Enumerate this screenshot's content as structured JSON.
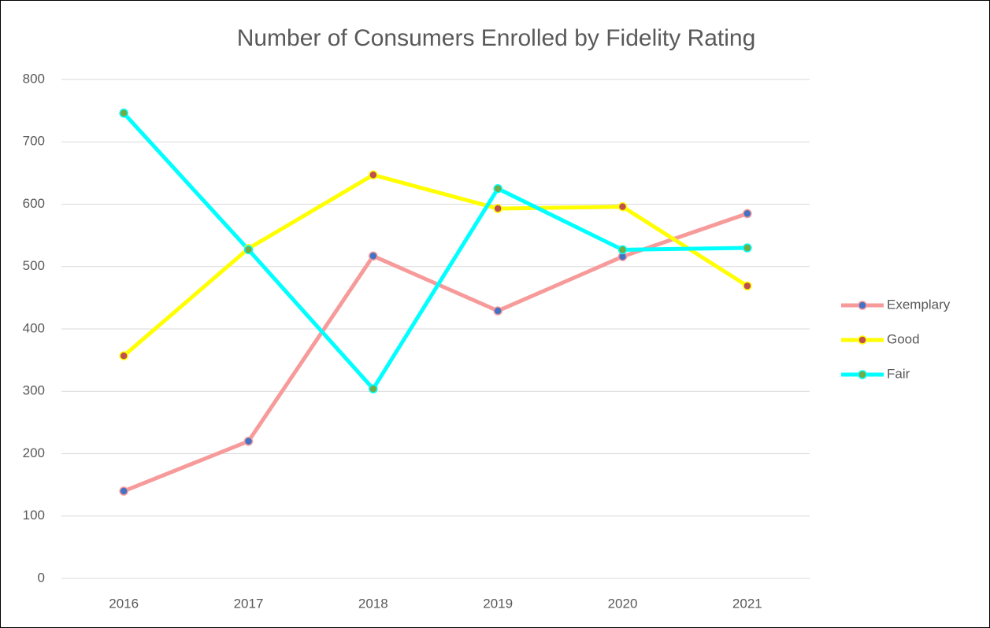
{
  "chart_data": {
    "type": "line",
    "title": "Number of Consumers Enrolled by Fidelity Rating",
    "categories": [
      "2016",
      "2017",
      "2018",
      "2019",
      "2020",
      "2021"
    ],
    "series": [
      {
        "name": "Exemplary",
        "color": "#f79a9a",
        "marker_color": "#4472c4",
        "values": [
          140,
          220,
          517,
          429,
          516,
          585
        ]
      },
      {
        "name": "Good",
        "color": "#ffff00",
        "marker_color": "#c0504d",
        "values": [
          357,
          529,
          647,
          593,
          596,
          469
        ]
      },
      {
        "name": "Fair",
        "color": "#00ffff",
        "marker_color": "#70ad47",
        "values": [
          746,
          527,
          304,
          625,
          527,
          530
        ]
      }
    ],
    "ylim": [
      0,
      800
    ],
    "yticks": [
      0,
      100,
      200,
      300,
      400,
      500,
      600,
      700,
      800
    ],
    "grid": true,
    "legend": "right"
  }
}
